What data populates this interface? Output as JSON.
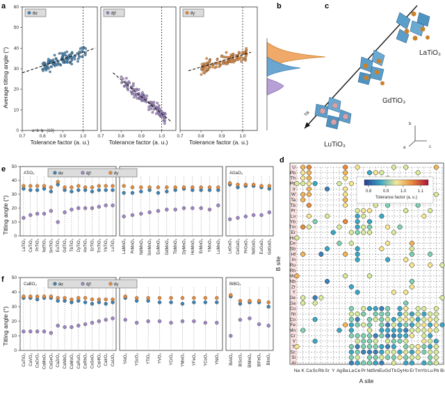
{
  "panel_letters": {
    "a": "a",
    "b": "b",
    "c": "c",
    "d": "d",
    "e": "e",
    "f": "f"
  },
  "colors": {
    "alpha": "#3f83b4",
    "beta": "#9d84c4",
    "gamma": "#e58a3a",
    "legend_bg": "#dcdcdc",
    "octa": "#5b9ec9",
    "ball_orange": "#c9822c",
    "ball_pink": "#d7a3aa"
  },
  "panel_a": {
    "ylabel": "Average tilting angle (°)",
    "xlabel": "Tolerance factor (a. u.)",
    "annotation": "a⁺b⁻b⁻ (10)",
    "yticks": [
      "0",
      "10",
      "20",
      "30",
      "40",
      "50",
      "60"
    ],
    "xticks": [
      "0.7",
      "0.8",
      "0.9",
      "1.0"
    ],
    "subplots": [
      {
        "legend": "θα",
        "color_key": "alpha",
        "trend": [
          [
            0.7,
            28
          ],
          [
            1.06,
            40
          ]
        ]
      },
      {
        "legend": "θβ",
        "color_key": "beta",
        "trend": [
          [
            0.76,
            28
          ],
          [
            1.05,
            4
          ]
        ]
      },
      {
        "legend": "θγ",
        "color_key": "gamma",
        "trend": [
          [
            0.74,
            29
          ],
          [
            1.04,
            38
          ]
        ]
      }
    ]
  },
  "panel_c": {
    "labels": [
      "LaTiO₃",
      "GdTiO₃",
      "LuTiO₃"
    ],
    "tilt_label": "Tilt",
    "axes": [
      "b",
      "a",
      "c"
    ]
  },
  "panel_d": {
    "ylabel": "B site",
    "xlabel": "A site",
    "colorbar_title": "Tolerance factor (a. u.)",
    "colorbar_ticks": [
      "0.8",
      "0.9",
      "1.0",
      "1.1"
    ],
    "b_sites": [
      "U",
      "Pb",
      "Th",
      "Pb",
      "Ir",
      "W",
      "Ta",
      "Tb",
      "Pr",
      "Lu",
      "Yb",
      "Tm",
      "Er",
      "Ho",
      "Ce",
      "Sb",
      "Hf",
      "In",
      "Ru",
      "Rh",
      "Mo",
      "Nb",
      "Zr",
      "Y",
      "Ge",
      "Ga",
      "Cu",
      "Ni",
      "Co",
      "Fe",
      "Mn",
      "Cr",
      "V",
      "Ti",
      "Sc",
      "Si",
      "Al"
    ],
    "a_sites": [
      "Na",
      "K",
      "Ca",
      "Sc",
      "Rb",
      "Sr",
      "Y",
      "Ag",
      "Ba",
      "La",
      "Ce",
      "Pr",
      "Nd",
      "Sm",
      "Eu",
      "Gd",
      "Tb",
      "Dy",
      "Ho",
      "Er",
      "Tm",
      "Yb",
      "Lu",
      "Pb",
      "Bi"
    ]
  },
  "panel_e": {
    "ylabel": "Titling angle (°)",
    "legend": [
      "θα",
      "θβ",
      "θγ"
    ],
    "groups": [
      {
        "title": "ATiO₃",
        "compounds": [
          "LaTiO₃",
          "CeTiO₃",
          "PrTiO₃",
          "NdTiO₃",
          "SmTiO₃",
          "EuTiO₃",
          "GdTiO₃",
          "TbTiO₃",
          "DyTiO₃",
          "HoTiO₃",
          "ErTiO₃",
          "TmTiO₃",
          "YbTiO₃",
          "LuTiO₃"
        ],
        "alpha": [
          34,
          33,
          33,
          34,
          32,
          37,
          33,
          32,
          33,
          33,
          32,
          33,
          33,
          33
        ],
        "beta": [
          13,
          15,
          16,
          16,
          18,
          10,
          17,
          19,
          20,
          20,
          20,
          21,
          22,
          22
        ],
        "gamma": [
          36,
          36,
          36,
          36,
          35,
          39,
          35,
          35,
          36,
          35,
          35,
          36,
          36,
          36
        ]
      },
      {
        "title": "AMnO₃",
        "compounds": [
          "LaMnO₃",
          "PrMnO₃",
          "NdMnO₃",
          "SmMnO₃",
          "EuMnO₃",
          "GdMnO₃",
          "TbMnO₃",
          "DyMnO₃",
          "HoMnO₃",
          "ErMnO₃",
          "YMnO₃",
          "LuMnO₃"
        ],
        "alpha": [
          31,
          31,
          32,
          33,
          31,
          32,
          33,
          34,
          33,
          33,
          33,
          33
        ],
        "beta": [
          14,
          15,
          16,
          17,
          18,
          19,
          19,
          20,
          20,
          20,
          19,
          22
        ],
        "gamma": [
          36,
          35,
          35,
          35,
          35,
          35,
          35,
          35,
          35,
          35,
          35,
          35
        ]
      },
      {
        "title": "AGaO₃",
        "compounds": [
          "LaGaO₃",
          "CeGaO₃",
          "PrGaO₃",
          "NdGaO₃",
          "EuGaO₃",
          "GdGaO₃"
        ],
        "alpha": [
          37,
          35,
          36,
          36,
          35,
          34
        ],
        "beta": [
          12,
          13,
          14,
          15,
          15,
          17
        ],
        "gamma": [
          38,
          37,
          37,
          37,
          36,
          36
        ]
      }
    ]
  },
  "panel_f": {
    "ylabel": "Titling angle (°)",
    "legend": [
      "θα",
      "θβ",
      "θγ"
    ],
    "groups": [
      {
        "title": "CaBO₃",
        "compounds": [
          "CaTiO₃",
          "CaVO₃",
          "CaCrO₃",
          "CaMnO₃",
          "CaGeO₃",
          "CaZrO₃",
          "CaNbO₃",
          "CaMoO₃",
          "CaRuO₃",
          "CaRhO₃",
          "CaSnO₃",
          "CaHfO₃",
          "CaIrO₃",
          "CaUO₃"
        ],
        "alpha": [
          36,
          36,
          35,
          36,
          36,
          34,
          34,
          33,
          34,
          33,
          32,
          33,
          32,
          33
        ],
        "beta": [
          13,
          13,
          13,
          13,
          12,
          17,
          16,
          16,
          17,
          18,
          19,
          20,
          21,
          22
        ],
        "gamma": [
          37,
          37,
          37,
          37,
          37,
          36,
          36,
          35,
          36,
          36,
          35,
          35,
          35,
          35
        ]
      },
      {
        "title": "YBO₃",
        "compounds": [
          "YAlO₃",
          "YScO₃",
          "YTiO₃",
          "YVO₃",
          "YCrO₃",
          "YMnO₃",
          "YFeO₃",
          "YCoO₃",
          "YNiO₃"
        ],
        "alpha": [
          36,
          34,
          34,
          33,
          33,
          32,
          33,
          33,
          33
        ],
        "beta": [
          21,
          19,
          20,
          20,
          19,
          20,
          20,
          19,
          19
        ],
        "gamma": [
          37,
          36,
          36,
          36,
          36,
          36,
          36,
          36,
          36
        ]
      },
      {
        "title": "BiBO₃",
        "compounds": [
          "BiAlO₃",
          "BiScO₃",
          "BiMnO₃",
          "BiFeO₃",
          "BiInO₃"
        ],
        "alpha": [
          37,
          32,
          33,
          33,
          30
        ],
        "beta": [
          10,
          21,
          22,
          18,
          17
        ],
        "gamma": [
          38,
          34,
          34,
          34,
          33
        ]
      }
    ]
  }
}
